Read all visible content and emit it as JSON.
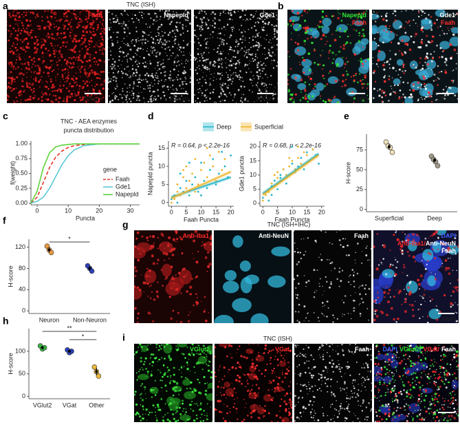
{
  "figure": {
    "panel_labels": [
      "a",
      "b",
      "c",
      "d",
      "e",
      "f",
      "g",
      "h",
      "i"
    ]
  },
  "images": {
    "a": {
      "title": "TNC (ISH)",
      "tiles": [
        {
          "lines": [
            [
              {
                "text": "Faah",
                "color": "#ff2a2a"
              }
            ]
          ],
          "scale": "200µm"
        },
        {
          "lines": [
            [
              {
                "text": "Napepld",
                "color": "#ffffff"
              }
            ]
          ],
          "scale": "200µm"
        },
        {
          "lines": [
            [
              {
                "text": "Gde1",
                "color": "#ffffff"
              }
            ]
          ],
          "scale": "200µm"
        }
      ]
    },
    "b": {
      "tiles": [
        {
          "lines": [
            [
              {
                "text": "Napepld",
                "color": "#33e633"
              }
            ],
            [
              {
                "text": "Faah",
                "color": "#ff2a2a"
              }
            ]
          ],
          "scale": "20 µm"
        },
        {
          "lines": [
            [
              {
                "text": "Gde1",
                "color": "#ffffff"
              }
            ],
            [
              {
                "text": "Faah",
                "color": "#ff2a2a"
              }
            ]
          ],
          "scale": "20 µm"
        }
      ]
    },
    "g": {
      "title": "TNC (ISH+IHC)",
      "tiles": [
        {
          "lines": [
            [
              {
                "text": "Anti-Iba1",
                "color": "#ff2a2a"
              }
            ]
          ]
        },
        {
          "lines": [
            [
              {
                "text": "Anti-NeuN",
                "color": "#ffffff"
              }
            ]
          ]
        },
        {
          "lines": [
            [
              {
                "text": "Faah",
                "color": "#ffffff"
              }
            ]
          ]
        },
        {
          "lines": [
            [
              {
                "text": "DAPI",
                "color": "#3a5cff"
              }
            ],
            [
              {
                "text": "Anti-Iba1/",
                "color": "#ff2a2a"
              },
              {
                "text": "Anti-NeuN",
                "color": "#ffffff"
              }
            ],
            [
              {
                "text": "Faah",
                "color": "#ffffff"
              }
            ]
          ],
          "scale": "10µm"
        }
      ]
    },
    "i": {
      "title": "TNC (ISH)",
      "tiles": [
        {
          "lines": [
            [
              {
                "text": "VGlut2",
                "color": "#33e633"
              }
            ]
          ]
        },
        {
          "lines": [
            [
              {
                "text": "VGat",
                "color": "#ff2a2a"
              }
            ]
          ]
        },
        {
          "lines": [
            [
              {
                "text": "Faah",
                "color": "#ffffff"
              }
            ]
          ]
        },
        {
          "lines": [
            [
              {
                "text": "DAPI",
                "color": "#3a5cff"
              },
              {
                "text": "VGlut2/",
                "color": "#33e633"
              },
              {
                "text": "VGat/",
                "color": "#ff2a2a"
              },
              {
                "text": "Faah",
                "color": "#ffffff"
              }
            ]
          ],
          "scale": "20µm"
        }
      ]
    }
  },
  "chart_data": [
    {
      "type": "line",
      "title": [
        "TNC - AEA enzymes",
        "puncta distribution"
      ],
      "xlabel": "Puncta",
      "ylabel": "f(weight)",
      "x": [
        -2,
        0,
        2,
        4,
        6,
        8,
        10,
        12,
        15,
        20,
        33
      ],
      "series": [
        {
          "name": "Faah",
          "color": "#e8312a",
          "dash": true,
          "values": [
            0,
            0.1,
            0.35,
            0.6,
            0.78,
            0.88,
            0.94,
            0.97,
            0.99,
            1,
            1
          ]
        },
        {
          "name": "Gde1",
          "color": "#5bc8d8",
          "values": [
            0,
            0.03,
            0.1,
            0.25,
            0.45,
            0.65,
            0.8,
            0.9,
            0.97,
            1,
            1
          ]
        },
        {
          "name": "Napepld",
          "color": "#5fd13a",
          "values": [
            0,
            0.2,
            0.6,
            0.85,
            0.95,
            0.98,
            0.99,
            1,
            1,
            1,
            1
          ]
        }
      ],
      "legend_title": "gene",
      "xlim": [
        -2,
        33
      ],
      "xticks": [
        0,
        10,
        20,
        30
      ],
      "ylim": [
        -0.03,
        1.05
      ],
      "yticks": [
        {
          "value": 0,
          "label": "0.00"
        },
        {
          "value": 0.25,
          "label": "0.25"
        },
        {
          "value": 0.5,
          "label": "0.50"
        },
        {
          "value": 0.75,
          "label": "0.75"
        },
        {
          "value": 1,
          "label": "1.00"
        }
      ]
    },
    {
      "type": "scatter",
      "xlabel": "Faah Puncta",
      "ylabel": "Napepld puncta",
      "annotation": "R = 0.64, p < 2.2e-16",
      "series": [
        {
          "name": "Deep",
          "color": "#1fb4c8",
          "x": [
            0,
            1,
            2,
            3,
            4,
            5,
            6,
            7,
            8,
            9,
            10,
            11,
            12,
            13,
            14,
            15,
            16,
            17,
            18,
            19,
            20,
            3,
            6,
            10
          ],
          "values": [
            1,
            2,
            0,
            4,
            3,
            6,
            2,
            5,
            7,
            3,
            11,
            6,
            4,
            9,
            12,
            5,
            8,
            14,
            10,
            7,
            13,
            8,
            11,
            2
          ],
          "fit": {
            "x": [
              0,
              20
            ],
            "values": [
              1.5,
              7
            ]
          }
        },
        {
          "name": "Superficial",
          "color": "#f0b429",
          "x": [
            0,
            1,
            2,
            2,
            3,
            4,
            5,
            5,
            6,
            7,
            8,
            9,
            10,
            11,
            12,
            13,
            14,
            15,
            16,
            17,
            18,
            4,
            8,
            12
          ],
          "values": [
            0,
            1,
            3,
            5,
            2,
            7,
            4,
            10,
            6,
            8,
            12,
            5,
            9,
            11,
            7,
            13,
            10,
            6,
            14,
            9,
            12,
            9,
            3,
            15
          ],
          "fit": {
            "x": [
              0,
              20
            ],
            "values": [
              1.2,
              8.5
            ]
          }
        }
      ],
      "xlim": [
        -1,
        21
      ],
      "xticks": [
        0,
        5,
        10,
        15,
        20
      ],
      "ylim": [
        -1,
        17
      ],
      "yticks": [
        0,
        5,
        10,
        15
      ]
    },
    {
      "type": "scatter",
      "xlabel": "Faah Puncta",
      "ylabel": "Gde1 puncta",
      "annotation": "R = 0.68, p < 2.2e-16",
      "series": [
        {
          "color": "#1fb4c8",
          "x": [
            0,
            1,
            2,
            3,
            4,
            5,
            6,
            7,
            8,
            9,
            10,
            11,
            12,
            13,
            14,
            15,
            16,
            17,
            18,
            19,
            3,
            6,
            10,
            12
          ],
          "values": [
            2,
            4,
            1,
            6,
            8,
            5,
            9,
            12,
            7,
            10,
            14,
            11,
            13,
            16,
            12,
            18,
            15,
            19,
            17,
            14,
            3,
            10,
            20,
            20
          ],
          "fit": {
            "x": [
              0,
              19
            ],
            "values": [
              3.5,
              17.5
            ]
          }
        },
        {
          "color": "#f0b429",
          "x": [
            0,
            1,
            2,
            2,
            3,
            4,
            5,
            5,
            6,
            7,
            8,
            9,
            10,
            11,
            12,
            13,
            14,
            15,
            16,
            17,
            4,
            8,
            12,
            9
          ],
          "values": [
            1,
            3,
            5,
            4,
            7,
            6,
            9,
            11,
            8,
            12,
            10,
            13,
            15,
            12,
            16,
            14,
            18,
            17,
            15,
            19,
            10,
            9,
            20,
            16
          ],
          "fit": {
            "x": [
              0,
              19
            ],
            "values": [
              3,
              17
            ]
          }
        }
      ],
      "xlim": [
        -1,
        21
      ],
      "xticks": [
        0,
        5,
        10,
        15,
        20
      ],
      "ylim": [
        -1,
        22
      ],
      "yticks": [
        0,
        5,
        10,
        15,
        20
      ]
    },
    {
      "type": "dot",
      "ylabel": "H-score",
      "categories": [
        "Superficial",
        "Deep"
      ],
      "points": [
        [
          85,
          80,
          78,
          72
        ],
        [
          67,
          63,
          60,
          55
        ]
      ],
      "colors": [
        "#efe0b8",
        "#a09a88"
      ],
      "means": [
        79,
        62
      ],
      "errors": [
        4,
        3
      ],
      "ylim": [
        -3,
        95
      ],
      "yticks": [
        0,
        25,
        50,
        75
      ]
    },
    {
      "type": "dot",
      "ylabel": "H-score",
      "categories": [
        "Neuron",
        "Non-Neuron"
      ],
      "points": [
        [
          122,
          115,
          110
        ],
        [
          85,
          80,
          75
        ]
      ],
      "colors": [
        "#e89a3c",
        "#2a3fb8"
      ],
      "means": [
        115,
        80
      ],
      "errors": [
        5,
        4
      ],
      "ylim": [
        -5,
        135
      ],
      "yticks": [
        0,
        40,
        80,
        120
      ],
      "significance": [
        {
          "label": "*",
          "categories": [
            "Neuron",
            "Non-Neuron"
          ]
        }
      ]
    },
    {
      "type": "dot",
      "ylabel": "H-score",
      "categories": [
        "VGlut2",
        "VGat",
        "Other"
      ],
      "points": [
        [
          112,
          105,
          108
        ],
        [
          103,
          97,
          100
        ],
        [
          65,
          55,
          45
        ]
      ],
      "colors": [
        "#3cb043",
        "#2a3fb8",
        "#e8b63a"
      ],
      "means": [
        108,
        100,
        55
      ],
      "errors": [
        3,
        3,
        8
      ],
      "ylim": [
        -5,
        150
      ],
      "yticks": [
        0,
        50,
        100
      ],
      "significance": [
        {
          "label": "**",
          "categories": [
            "VGlut2",
            "Other"
          ]
        },
        {
          "label": "*",
          "categories": [
            "VGat",
            "Other"
          ]
        }
      ]
    }
  ]
}
